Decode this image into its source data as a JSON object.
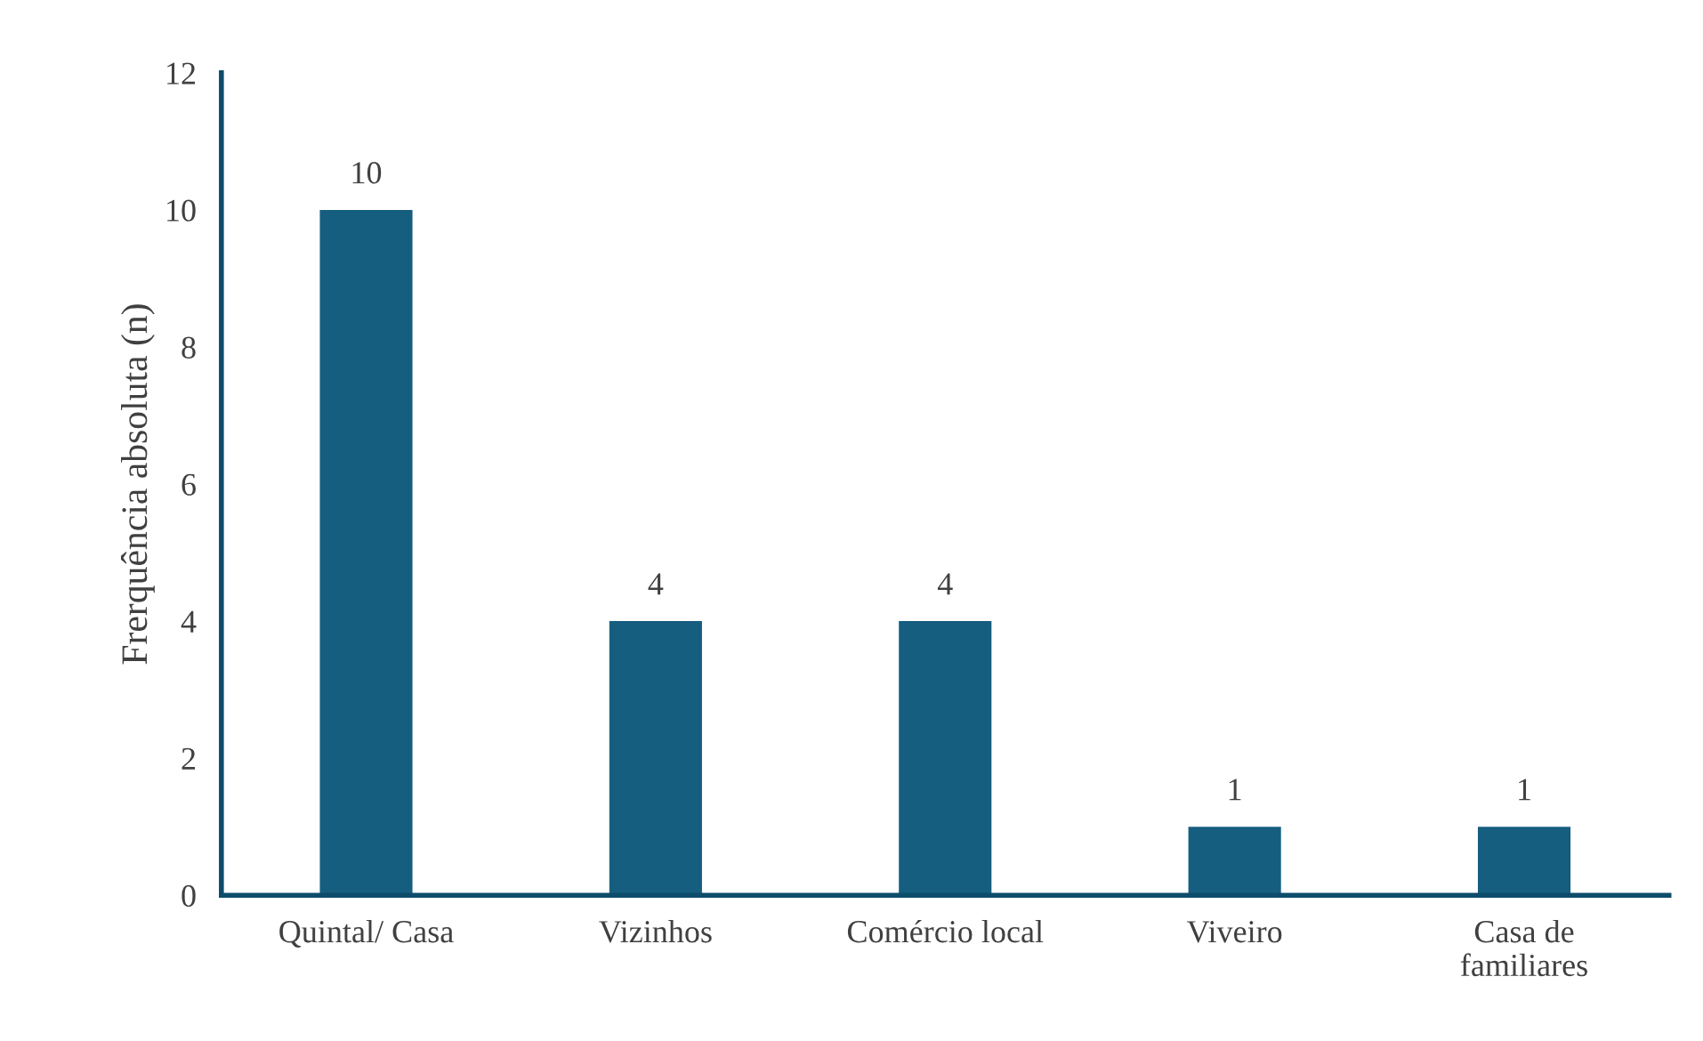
{
  "chart_data": {
    "type": "bar",
    "ylabel": "Frerquência absoluta (n)",
    "categories": [
      "Quintal/ Casa",
      "Vizinhos",
      "Comércio local",
      "Viveiro",
      "Casa de\nfamiliares"
    ],
    "values": [
      10,
      4,
      4,
      1,
      1
    ],
    "color": "#165e80",
    "ylim": [
      0,
      12
    ],
    "yticks": [
      0,
      2,
      4,
      6,
      8,
      10,
      12
    ],
    "grid": false,
    "data_labels": true
  }
}
